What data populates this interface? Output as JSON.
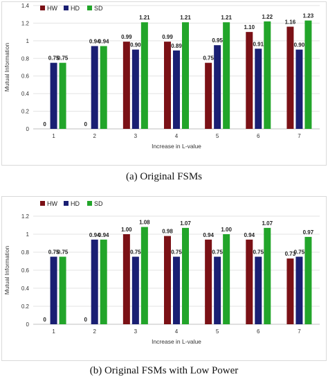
{
  "chart_data": [
    {
      "type": "bar",
      "title": "",
      "xlabel": "Increase in L-value",
      "ylabel": "Mutual Information",
      "ylim": [
        0,
        1.4
      ],
      "yticks": [
        "0",
        "0.2",
        "0.4",
        "0.6",
        "0.8",
        "1",
        "1.2",
        "1.4"
      ],
      "categories": [
        "1",
        "2",
        "3",
        "4",
        "5",
        "6",
        "7"
      ],
      "legend_position": "top-left",
      "grid": true,
      "series": [
        {
          "name": "HW",
          "color": "#7b1116",
          "values": [
            0,
            0,
            0.99,
            0.99,
            0.75,
            1.1,
            1.16
          ],
          "labels": [
            "0",
            "0",
            "0.99",
            "0.99",
            "0.75",
            "1.10",
            "1.16"
          ]
        },
        {
          "name": "HD",
          "color": "#1a1f73",
          "values": [
            0.75,
            0.94,
            0.9,
            0.89,
            0.95,
            0.91,
            0.9
          ],
          "labels": [
            "0.75",
            "0.94",
            "0.90",
            "0.89",
            "0.95",
            "0.91",
            "0.90"
          ]
        },
        {
          "name": "SD",
          "color": "#22a52a",
          "values": [
            0.75,
            0.94,
            1.21,
            1.21,
            1.21,
            1.22,
            1.23
          ],
          "labels": [
            "0.75",
            "0.94",
            "1.21",
            "1.21",
            "1.21",
            "1.22",
            "1.23"
          ]
        }
      ],
      "caption": "(a)  Original FSMs"
    },
    {
      "type": "bar",
      "title": "",
      "xlabel": "Increase in L-value",
      "ylabel": "Mutual Information",
      "ylim": [
        0,
        1.2
      ],
      "yticks": [
        "0",
        "0.2",
        "0.4",
        "0.6",
        "0.8",
        "1",
        "1.2"
      ],
      "categories": [
        "1",
        "2",
        "3",
        "4",
        "5",
        "6",
        "7"
      ],
      "legend_position": "top-left",
      "grid": true,
      "series": [
        {
          "name": "HW",
          "color": "#7b1116",
          "values": [
            0,
            0,
            1.0,
            0.98,
            0.94,
            0.94,
            0.73
          ],
          "labels": [
            "0",
            "0",
            "1.00",
            "0.98",
            "0.94",
            "0.94",
            "0.73"
          ]
        },
        {
          "name": "HD",
          "color": "#1a1f73",
          "values": [
            0.75,
            0.94,
            0.75,
            0.75,
            0.75,
            0.75,
            0.75
          ],
          "labels": [
            "0.75",
            "0.94",
            "0.75",
            "0.75",
            "0.75",
            "0.75",
            "0.75"
          ]
        },
        {
          "name": "SD",
          "color": "#22a52a",
          "values": [
            0.75,
            0.94,
            1.08,
            1.07,
            1.0,
            1.07,
            0.97
          ],
          "labels": [
            "0.75",
            "0.94",
            "1.08",
            "1.07",
            "1.00",
            "1.07",
            "0.97"
          ]
        }
      ],
      "caption": "(b)  Original FSMs with Low Power"
    }
  ]
}
